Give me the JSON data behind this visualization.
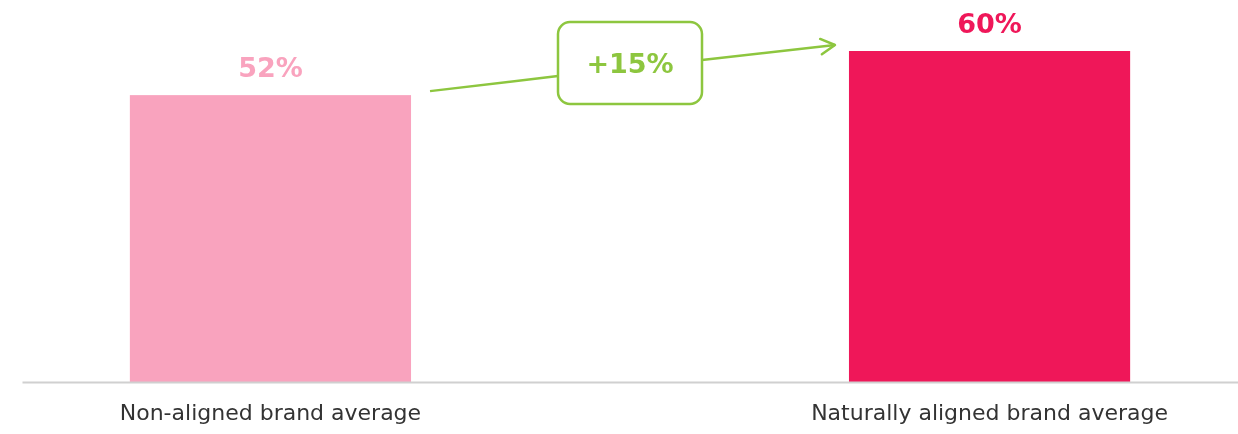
{
  "chart_data": {
    "type": "bar",
    "categories": [
      "Non-aligned brand average",
      "Naturally aligned brand average"
    ],
    "values": [
      52,
      60
    ],
    "colors": [
      "#f9a3be",
      "#ef1759"
    ],
    "value_labels": [
      "52%",
      "60%"
    ],
    "ylim": [
      0,
      60
    ],
    "tick_labels": "x",
    "annotations": [
      "+15%"
    ]
  }
}
